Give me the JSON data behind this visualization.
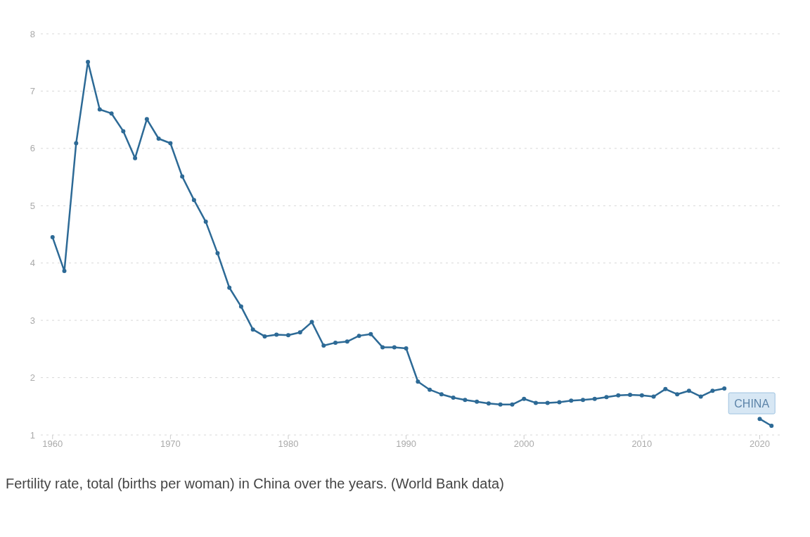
{
  "chart_data": {
    "type": "line",
    "x": [
      1960,
      1961,
      1962,
      1963,
      1964,
      1965,
      1966,
      1967,
      1968,
      1969,
      1970,
      1971,
      1972,
      1973,
      1974,
      1975,
      1976,
      1977,
      1978,
      1979,
      1980,
      1981,
      1982,
      1983,
      1984,
      1985,
      1986,
      1987,
      1988,
      1989,
      1990,
      1991,
      1992,
      1993,
      1994,
      1995,
      1996,
      1997,
      1998,
      1999,
      2000,
      2001,
      2002,
      2003,
      2004,
      2005,
      2006,
      2007,
      2008,
      2009,
      2010,
      2011,
      2012,
      2013,
      2014,
      2015,
      2016,
      2017,
      2018,
      2019,
      2020,
      2021
    ],
    "series": [
      {
        "name": "CHINA",
        "color": "#2d6a96",
        "values": [
          4.45,
          3.86,
          6.09,
          7.51,
          6.68,
          6.61,
          6.3,
          5.83,
          6.51,
          6.17,
          6.09,
          5.51,
          5.1,
          4.72,
          4.17,
          3.57,
          3.24,
          2.84,
          2.72,
          2.75,
          2.74,
          2.79,
          2.97,
          2.56,
          2.61,
          2.63,
          2.73,
          2.76,
          2.53,
          2.53,
          2.51,
          1.93,
          1.79,
          1.71,
          1.65,
          1.61,
          1.58,
          1.55,
          1.53,
          1.53,
          1.63,
          1.56,
          1.56,
          1.57,
          1.6,
          1.61,
          1.63,
          1.66,
          1.69,
          1.7,
          1.69,
          1.67,
          1.8,
          1.71,
          1.77,
          1.67,
          1.77,
          1.81,
          null,
          null,
          1.28,
          1.16
        ]
      }
    ],
    "xlim": [
      1959,
      2022
    ],
    "xticks": [
      1960,
      1970,
      1980,
      1990,
      2000,
      2010,
      2020
    ],
    "ylim": [
      1,
      8
    ],
    "yticks": [
      1,
      2,
      3,
      4,
      5,
      6,
      7,
      8
    ],
    "grid": "y",
    "marker": "circle",
    "line_style": "solid",
    "annotations": [
      "Fertility rate, total (births per woman) in China over the years. (World Bank data)"
    ]
  }
}
